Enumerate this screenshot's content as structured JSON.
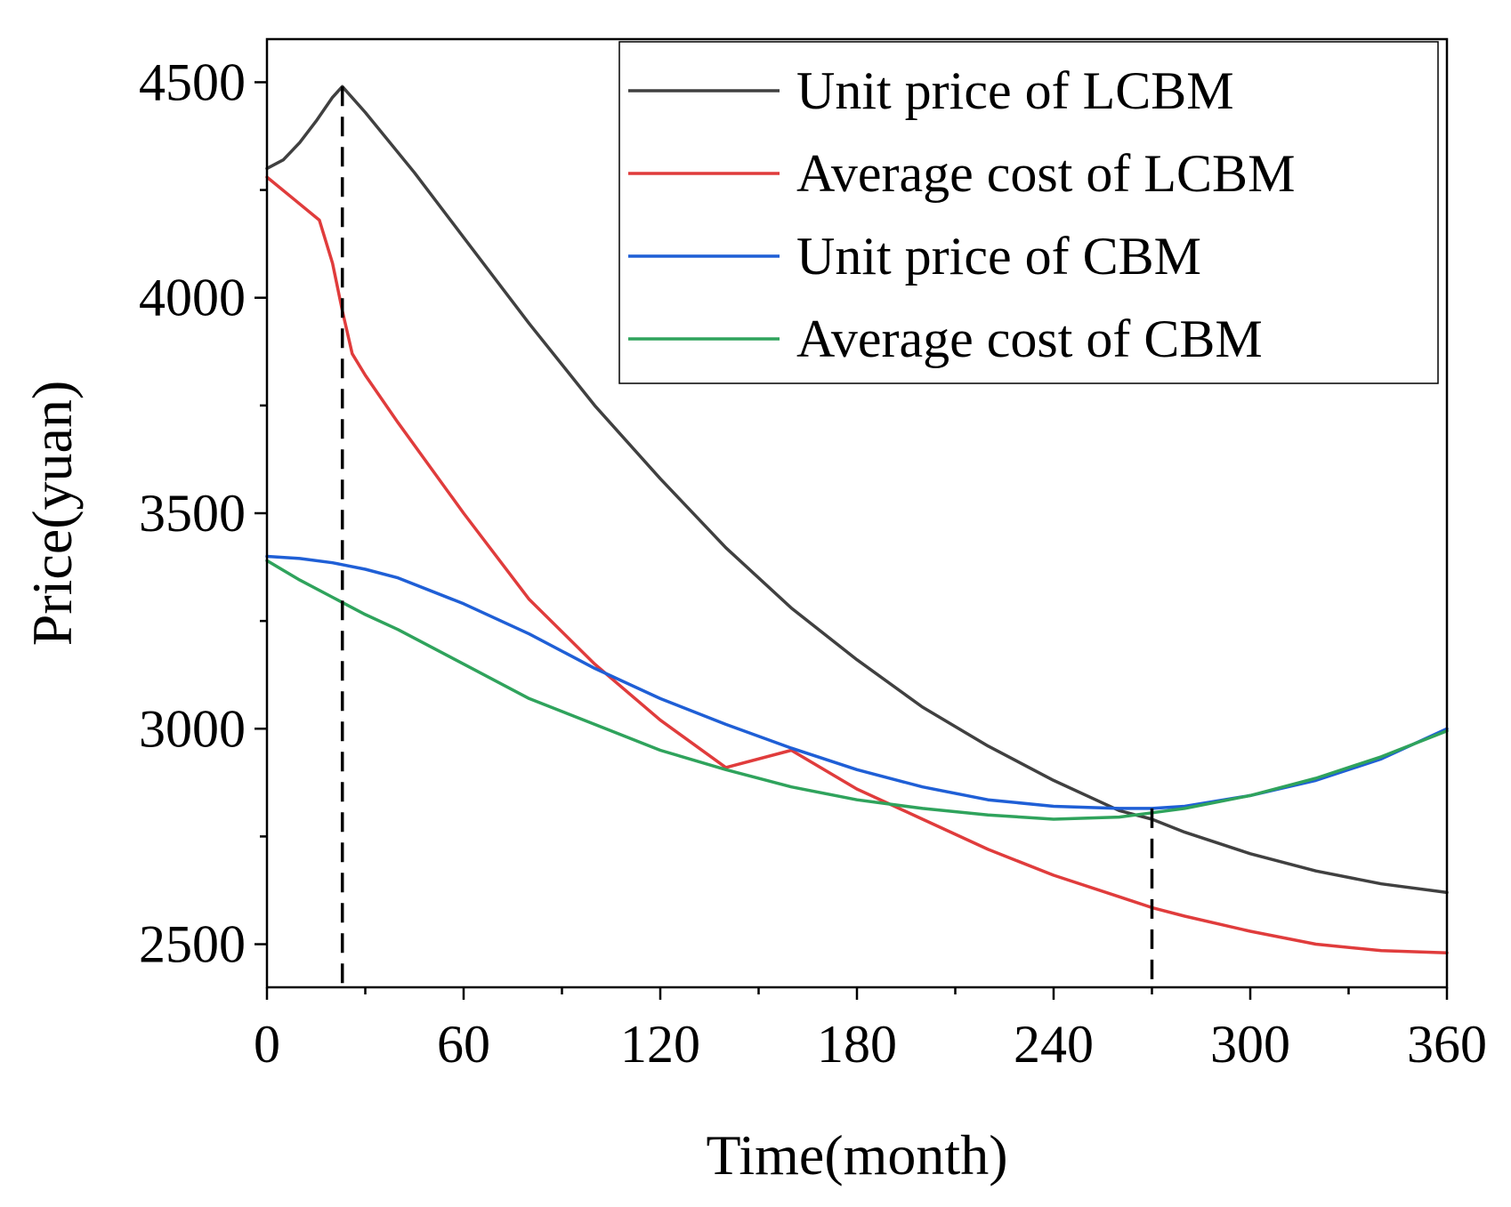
{
  "chart_data": {
    "type": "line",
    "title": "",
    "xlabel": "Time(month)",
    "ylabel": "Price(yuan)",
    "xlim": [
      0,
      360
    ],
    "ylim": [
      2400,
      4600
    ],
    "xticks": [
      0,
      60,
      120,
      180,
      240,
      300,
      360
    ],
    "yticks": [
      2500,
      3000,
      3500,
      4000,
      4500
    ],
    "legend": "top-right",
    "grid": false,
    "series": [
      {
        "name": "Unit price of LCBM",
        "color": "#404040",
        "x": [
          0,
          5,
          10,
          15,
          20,
          23,
          30,
          45,
          60,
          80,
          100,
          120,
          140,
          160,
          180,
          200,
          220,
          240,
          260,
          270,
          280,
          300,
          320,
          340,
          360
        ],
        "y": [
          4300,
          4320,
          4360,
          4410,
          4465,
          4490,
          4430,
          4290,
          4140,
          3940,
          3750,
          3580,
          3420,
          3280,
          3160,
          3050,
          2960,
          2880,
          2810,
          2790,
          2760,
          2710,
          2670,
          2640,
          2620
        ]
      },
      {
        "name": "Average cost of LCBM",
        "color": "#e03c3c",
        "x": [
          0,
          8,
          16,
          20,
          23,
          26,
          30,
          40,
          60,
          80,
          100,
          120,
          140,
          160,
          180,
          200,
          220,
          240,
          260,
          270,
          280,
          300,
          320,
          340,
          360
        ],
        "y": [
          4280,
          4230,
          4180,
          4080,
          3970,
          3870,
          3820,
          3710,
          3500,
          3300,
          3150,
          3020,
          2910,
          2950,
          2860,
          2790,
          2720,
          2660,
          2610,
          2585,
          2565,
          2530,
          2500,
          2485,
          2480
        ]
      },
      {
        "name": "Unit price of CBM",
        "color": "#1f5fd6",
        "x": [
          0,
          10,
          20,
          30,
          40,
          60,
          80,
          100,
          120,
          140,
          160,
          180,
          200,
          220,
          240,
          260,
          270,
          280,
          300,
          320,
          340,
          360
        ],
        "y": [
          3400,
          3395,
          3385,
          3370,
          3350,
          3290,
          3220,
          3140,
          3070,
          3010,
          2955,
          2905,
          2865,
          2835,
          2820,
          2815,
          2815,
          2820,
          2845,
          2880,
          2930,
          3000
        ]
      },
      {
        "name": "Average cost of CBM",
        "color": "#2fa35c",
        "x": [
          0,
          10,
          20,
          30,
          40,
          60,
          80,
          100,
          120,
          140,
          160,
          180,
          200,
          220,
          240,
          260,
          270,
          280,
          300,
          320,
          340,
          360
        ],
        "y": [
          3390,
          3345,
          3305,
          3265,
          3230,
          3150,
          3070,
          3010,
          2950,
          2905,
          2865,
          2835,
          2815,
          2800,
          2790,
          2795,
          2805,
          2815,
          2845,
          2885,
          2935,
          2995
        ]
      }
    ],
    "annotations": [
      {
        "type": "vertical-dashed-line",
        "x": 23
      },
      {
        "type": "vertical-dashed-line",
        "x": 270
      }
    ]
  }
}
